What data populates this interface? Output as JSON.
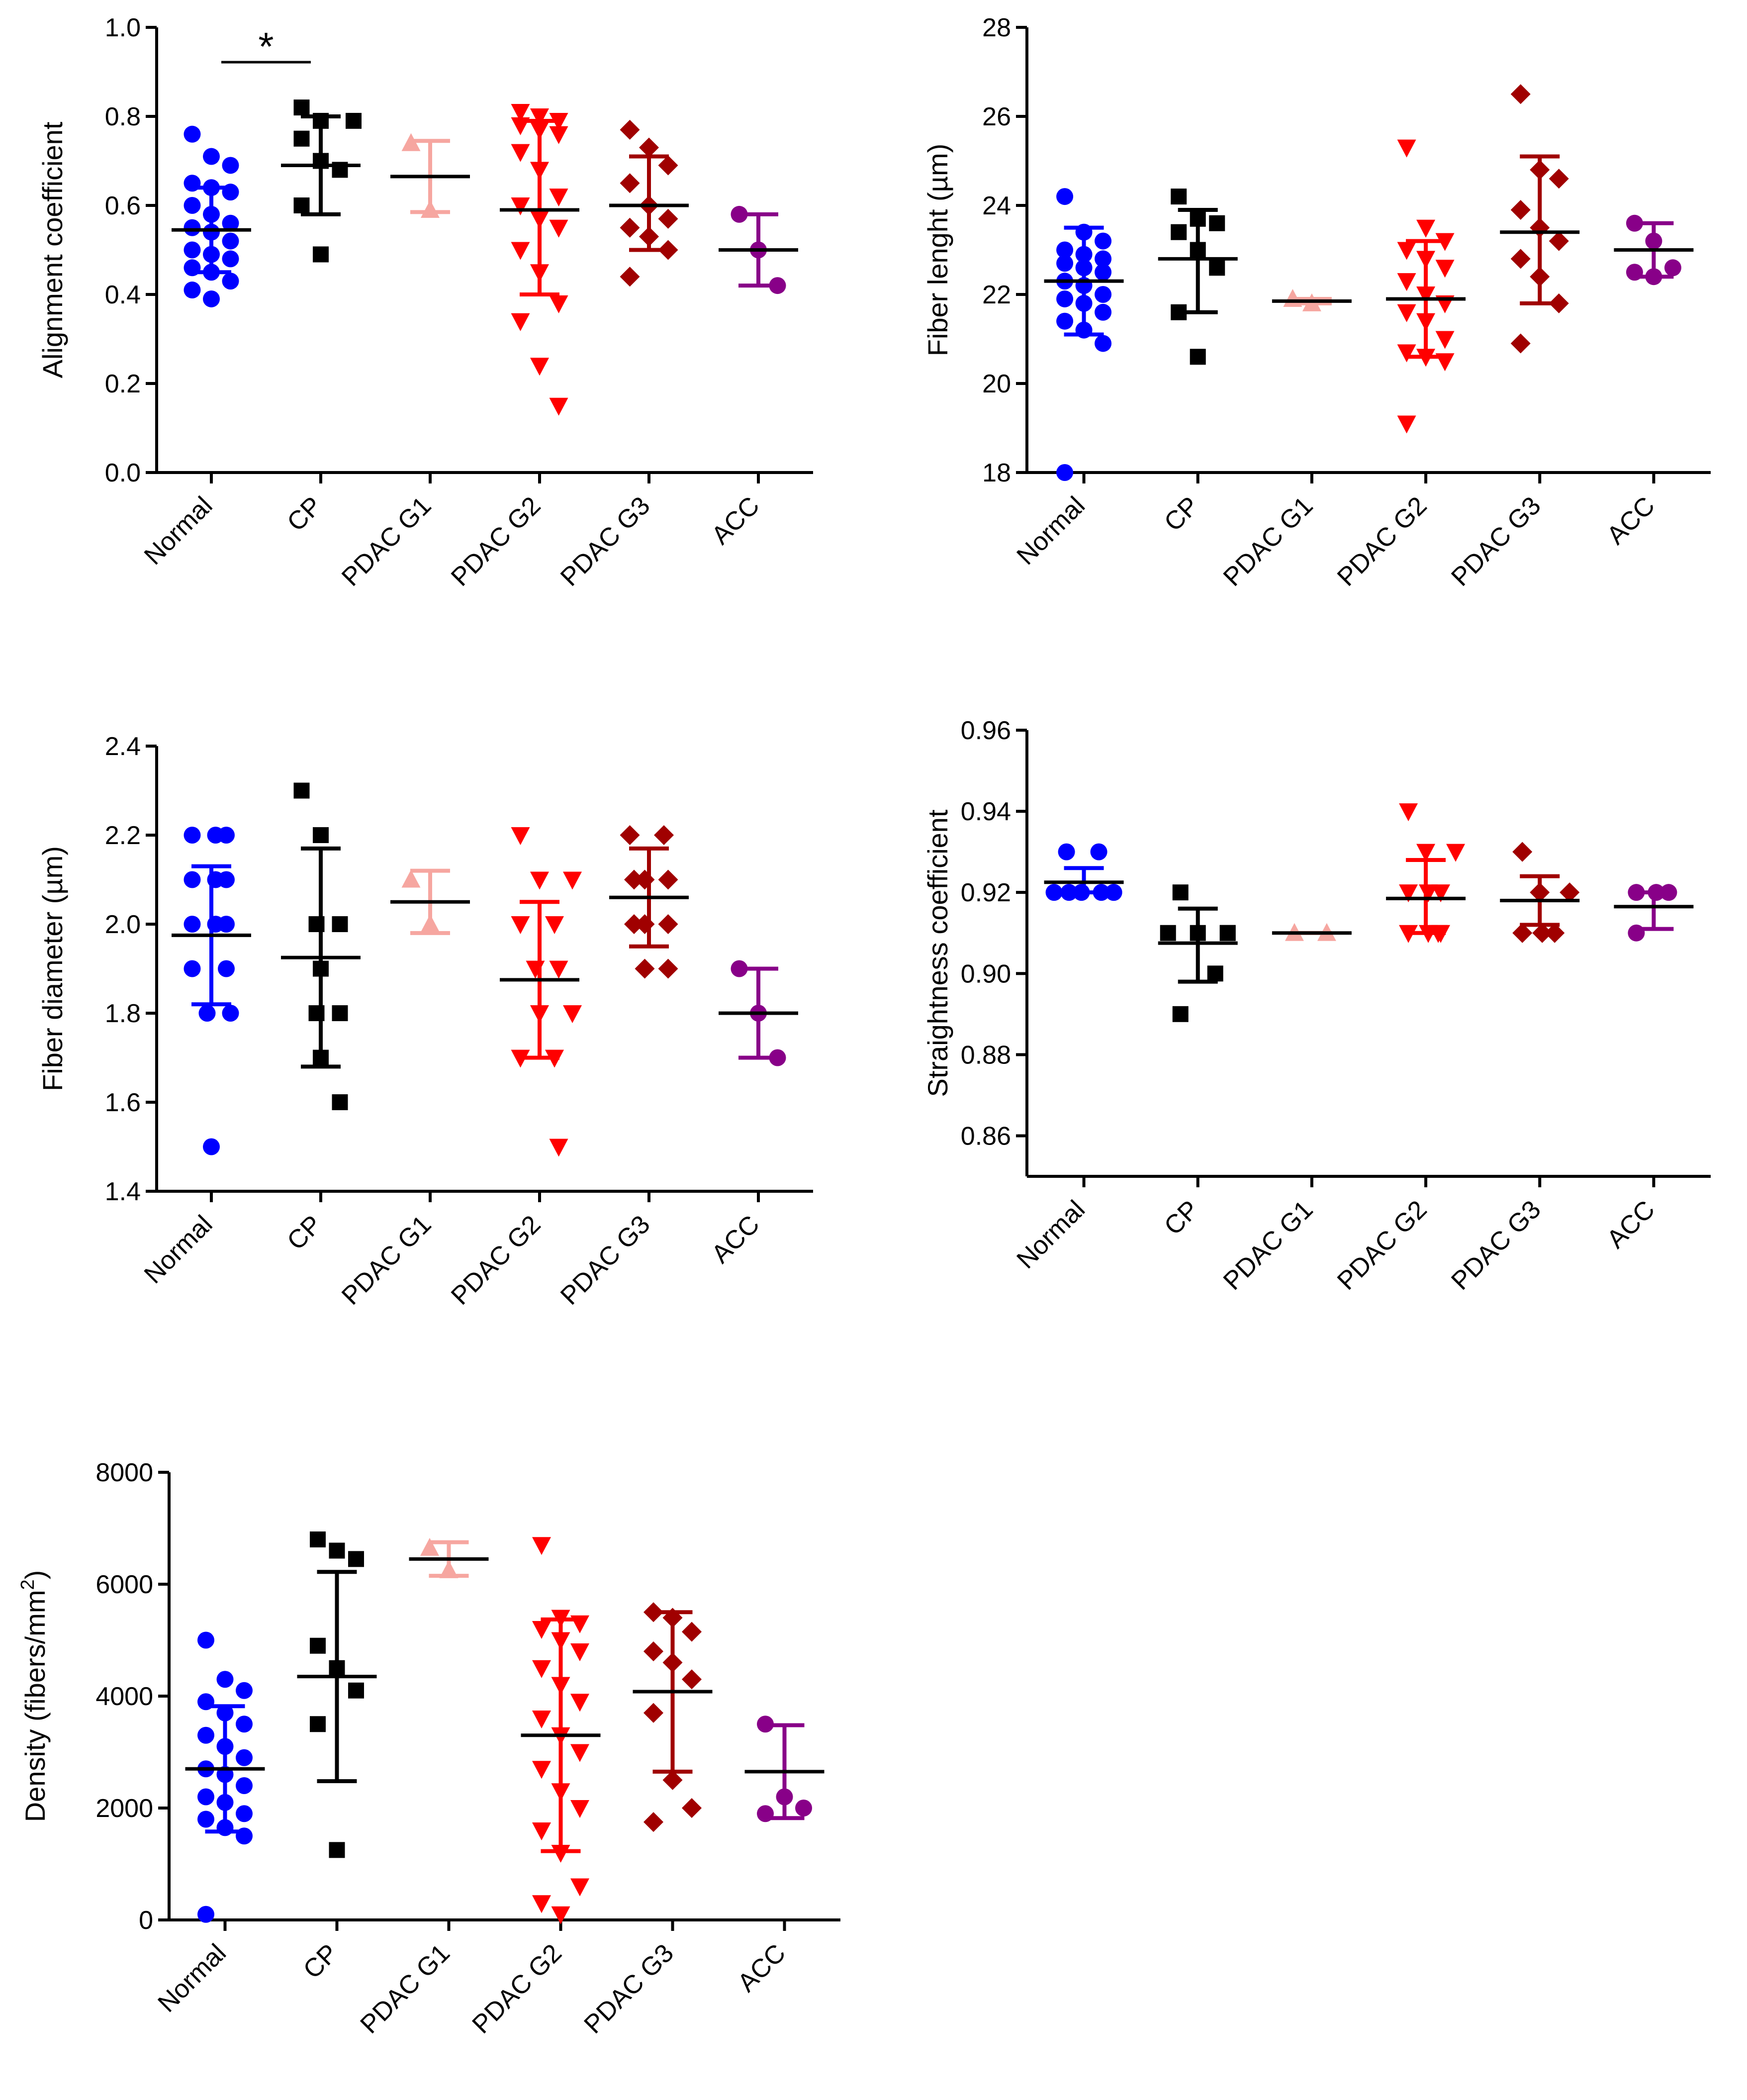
{
  "chart_data": [
    {
      "id": "alignment",
      "type": "scatter",
      "ylabel": "Alignment coefficient",
      "ylim": [
        0.0,
        1.0
      ],
      "yticks": [
        0.0,
        0.2,
        0.4,
        0.6,
        0.8,
        1.0
      ],
      "ytick_labels": [
        "0.0",
        "0.2",
        "0.4",
        "0.6",
        "0.8",
        "1.0"
      ],
      "significance": {
        "from": "Normal",
        "to": "CP",
        "label": "*"
      },
      "groups": [
        {
          "name": "Normal",
          "marker": "circle",
          "color": "#0000ff",
          "mean": 0.545,
          "sd_low": 0.45,
          "sd_high": 0.64,
          "values": [
            0.76,
            0.71,
            0.69,
            0.65,
            0.64,
            0.63,
            0.6,
            0.58,
            0.56,
            0.55,
            0.54,
            0.52,
            0.5,
            0.49,
            0.48,
            0.46,
            0.45,
            0.43,
            0.41,
            0.39
          ]
        },
        {
          "name": "CP",
          "marker": "square",
          "color": "#000000",
          "mean": 0.69,
          "sd_low": 0.58,
          "sd_high": 0.8,
          "values": [
            0.82,
            0.79,
            0.79,
            0.75,
            0.7,
            0.68,
            0.6,
            0.49
          ]
        },
        {
          "name": "PDAC G1",
          "marker": "triangle-up",
          "color": "#f6a6a0",
          "mean": 0.665,
          "sd_low": 0.585,
          "sd_high": 0.745,
          "values": [
            0.74,
            0.59
          ]
        },
        {
          "name": "PDAC G2",
          "marker": "triangle-down",
          "color": "#ff0000",
          "mean": 0.59,
          "sd_low": 0.4,
          "sd_high": 0.79,
          "values": [
            0.81,
            0.8,
            0.79,
            0.78,
            0.77,
            0.76,
            0.72,
            0.68,
            0.62,
            0.6,
            0.57,
            0.55,
            0.5,
            0.45,
            0.38,
            0.34,
            0.24,
            0.15
          ]
        },
        {
          "name": "PDAC G3",
          "marker": "diamond",
          "color": "#a00000",
          "mean": 0.6,
          "sd_low": 0.5,
          "sd_high": 0.71,
          "values": [
            0.77,
            0.73,
            0.69,
            0.65,
            0.6,
            0.57,
            0.55,
            0.53,
            0.5,
            0.44
          ]
        },
        {
          "name": "ACC",
          "marker": "circle",
          "color": "#880088",
          "mean": 0.5,
          "sd_low": 0.42,
          "sd_high": 0.58,
          "values": [
            0.58,
            0.5,
            0.42
          ]
        }
      ]
    },
    {
      "id": "length",
      "type": "scatter",
      "ylabel": "Fiber lenght (µm)",
      "ylim": [
        18,
        28
      ],
      "yticks": [
        18,
        20,
        22,
        24,
        26,
        28
      ],
      "ytick_labels": [
        "18",
        "20",
        "22",
        "24",
        "26",
        "28"
      ],
      "groups": [
        {
          "name": "Normal",
          "marker": "circle",
          "color": "#0000ff",
          "mean": 22.3,
          "sd_low": 21.1,
          "sd_high": 23.5,
          "values": [
            24.2,
            23.4,
            23.2,
            23.0,
            22.9,
            22.8,
            22.7,
            22.6,
            22.5,
            22.3,
            22.2,
            22.0,
            21.9,
            21.8,
            21.6,
            21.4,
            21.2,
            20.9,
            18.0
          ]
        },
        {
          "name": "CP",
          "marker": "square",
          "color": "#000000",
          "mean": 22.8,
          "sd_low": 21.6,
          "sd_high": 23.9,
          "values": [
            24.2,
            23.7,
            23.6,
            23.4,
            23.0,
            22.6,
            21.6,
            20.6
          ]
        },
        {
          "name": "PDAC G1",
          "marker": "triangle-up",
          "color": "#f6a6a0",
          "mean": 21.85,
          "sd_low": 21.8,
          "sd_high": 21.9,
          "values": [
            21.9,
            21.8
          ]
        },
        {
          "name": "PDAC G2",
          "marker": "triangle-down",
          "color": "#ff0000",
          "mean": 21.9,
          "sd_low": 20.6,
          "sd_high": 23.2,
          "values": [
            25.3,
            23.5,
            23.2,
            23.0,
            22.8,
            22.6,
            22.3,
            22.0,
            21.8,
            21.6,
            21.4,
            21.0,
            20.7,
            20.6,
            20.5,
            19.1
          ]
        },
        {
          "name": "PDAC G3",
          "marker": "diamond",
          "color": "#a00000",
          "mean": 23.4,
          "sd_low": 21.8,
          "sd_high": 25.1,
          "values": [
            26.5,
            24.8,
            24.6,
            23.9,
            23.5,
            23.2,
            22.8,
            22.4,
            21.8,
            20.9
          ]
        },
        {
          "name": "ACC",
          "marker": "circle",
          "color": "#880088",
          "mean": 23.0,
          "sd_low": 22.4,
          "sd_high": 23.6,
          "values": [
            23.6,
            23.2,
            22.6,
            22.5,
            22.4
          ]
        }
      ]
    },
    {
      "id": "diameter",
      "type": "scatter",
      "ylabel": "Fiber diameter (µm)",
      "ylim": [
        1.4,
        2.4
      ],
      "yticks": [
        1.4,
        1.6,
        1.8,
        2.0,
        2.2,
        2.4
      ],
      "ytick_labels": [
        "1.4",
        "1.6",
        "1.8",
        "2.0",
        "2.2",
        "2.4"
      ],
      "groups": [
        {
          "name": "Normal",
          "marker": "circle",
          "color": "#0000ff",
          "mean": 1.975,
          "sd_low": 1.82,
          "sd_high": 2.13,
          "values": [
            2.2,
            2.2,
            2.2,
            2.1,
            2.1,
            2.1,
            2.0,
            2.0,
            2.0,
            1.9,
            1.9,
            1.8,
            1.8,
            1.5
          ]
        },
        {
          "name": "CP",
          "marker": "square",
          "color": "#000000",
          "mean": 1.925,
          "sd_low": 1.68,
          "sd_high": 2.17,
          "values": [
            2.3,
            2.2,
            2.0,
            2.0,
            1.9,
            1.8,
            1.8,
            1.7,
            1.6
          ]
        },
        {
          "name": "PDAC G1",
          "marker": "triangle-up",
          "color": "#f6a6a0",
          "mean": 2.05,
          "sd_low": 1.98,
          "sd_high": 2.12,
          "values": [
            2.1,
            2.0
          ]
        },
        {
          "name": "PDAC G2",
          "marker": "triangle-down",
          "color": "#ff0000",
          "mean": 1.875,
          "sd_low": 1.7,
          "sd_high": 2.05,
          "values": [
            2.2,
            2.1,
            2.1,
            2.0,
            2.0,
            1.9,
            1.9,
            1.8,
            1.8,
            1.7,
            1.7,
            1.5
          ]
        },
        {
          "name": "PDAC G3",
          "marker": "diamond",
          "color": "#a00000",
          "mean": 2.06,
          "sd_low": 1.95,
          "sd_high": 2.17,
          "values": [
            2.2,
            2.2,
            2.1,
            2.1,
            2.1,
            2.0,
            2.0,
            2.0,
            1.9,
            1.9
          ]
        },
        {
          "name": "ACC",
          "marker": "circle",
          "color": "#880088",
          "mean": 1.8,
          "sd_low": 1.7,
          "sd_high": 1.9,
          "values": [
            1.9,
            1.8,
            1.7
          ]
        }
      ]
    },
    {
      "id": "straightness",
      "type": "scatter",
      "ylabel": "Straightness coefficient",
      "ylim": [
        0.85,
        0.96
      ],
      "yticks": [
        0.86,
        0.88,
        0.9,
        0.92,
        0.94,
        0.96
      ],
      "ytick_labels": [
        "0.86",
        "0.88",
        "0.90",
        "0.92",
        "0.94",
        "0.96"
      ],
      "groups": [
        {
          "name": "Normal",
          "marker": "circle",
          "color": "#0000ff",
          "mean": 0.9225,
          "sd_low": 0.92,
          "sd_high": 0.926,
          "values": [
            0.93,
            0.93,
            0.92,
            0.92,
            0.92,
            0.92,
            0.92,
            0.92
          ]
        },
        {
          "name": "CP",
          "marker": "square",
          "color": "#000000",
          "mean": 0.9075,
          "sd_low": 0.898,
          "sd_high": 0.916,
          "values": [
            0.92,
            0.91,
            0.91,
            0.91,
            0.91,
            0.9,
            0.89
          ]
        },
        {
          "name": "PDAC G1",
          "marker": "triangle-up",
          "color": "#f6a6a0",
          "mean": 0.91,
          "sd_low": 0.91,
          "sd_high": 0.91,
          "values": [
            0.91,
            0.91
          ]
        },
        {
          "name": "PDAC G2",
          "marker": "triangle-down",
          "color": "#ff0000",
          "mean": 0.9185,
          "sd_low": 0.91,
          "sd_high": 0.928,
          "values": [
            0.94,
            0.93,
            0.93,
            0.92,
            0.92,
            0.92,
            0.91,
            0.91,
            0.91,
            0.91
          ]
        },
        {
          "name": "PDAC G3",
          "marker": "diamond",
          "color": "#a00000",
          "mean": 0.918,
          "sd_low": 0.912,
          "sd_high": 0.924,
          "values": [
            0.93,
            0.92,
            0.92,
            0.91,
            0.91,
            0.91
          ]
        },
        {
          "name": "ACC",
          "marker": "circle",
          "color": "#880088",
          "mean": 0.9165,
          "sd_low": 0.911,
          "sd_high": 0.92,
          "values": [
            0.92,
            0.92,
            0.92,
            0.91
          ]
        }
      ]
    },
    {
      "id": "density",
      "type": "scatter",
      "ylabel": "Density (fibers/mm",
      "ylabel_sup": "2",
      "ylabel_tail": ")",
      "ylim": [
        0,
        8000
      ],
      "yticks": [
        0,
        2000,
        4000,
        6000,
        8000
      ],
      "ytick_labels": [
        "0",
        "2000",
        "4000",
        "6000",
        "8000"
      ],
      "groups": [
        {
          "name": "Normal",
          "marker": "circle",
          "color": "#0000ff",
          "mean": 2700,
          "sd_low": 1580,
          "sd_high": 3820,
          "values": [
            5000,
            4300,
            4100,
            3900,
            3700,
            3500,
            3300,
            3100,
            2900,
            2700,
            2600,
            2400,
            2200,
            2100,
            1900,
            1800,
            1650,
            1500,
            100
          ]
        },
        {
          "name": "CP",
          "marker": "square",
          "color": "#000000",
          "mean": 4350,
          "sd_low": 2480,
          "sd_high": 6220,
          "values": [
            6800,
            6600,
            6450,
            4900,
            4500,
            4100,
            3500,
            1250
          ]
        },
        {
          "name": "PDAC G1",
          "marker": "triangle-up",
          "color": "#f6a6a0",
          "mean": 6450,
          "sd_low": 6150,
          "sd_high": 6750,
          "values": [
            6650,
            6250
          ]
        },
        {
          "name": "PDAC G2",
          "marker": "triangle-down",
          "color": "#ff0000",
          "mean": 3300,
          "sd_low": 1230,
          "sd_high": 5370,
          "values": [
            6700,
            5400,
            5300,
            5200,
            5000,
            4800,
            4500,
            4200,
            3900,
            3600,
            3300,
            3000,
            2700,
            2300,
            2000,
            1600,
            1200,
            600,
            300,
            100
          ]
        },
        {
          "name": "PDAC G3",
          "marker": "diamond",
          "color": "#a00000",
          "mean": 4080,
          "sd_low": 2650,
          "sd_high": 5500,
          "values": [
            5500,
            5400,
            5150,
            4800,
            4600,
            4300,
            3700,
            2500,
            2000,
            1750
          ]
        },
        {
          "name": "ACC",
          "marker": "circle",
          "color": "#880088",
          "mean": 2650,
          "sd_low": 1820,
          "sd_high": 3480,
          "values": [
            3500,
            2200,
            2000,
            1900
          ]
        }
      ]
    }
  ]
}
